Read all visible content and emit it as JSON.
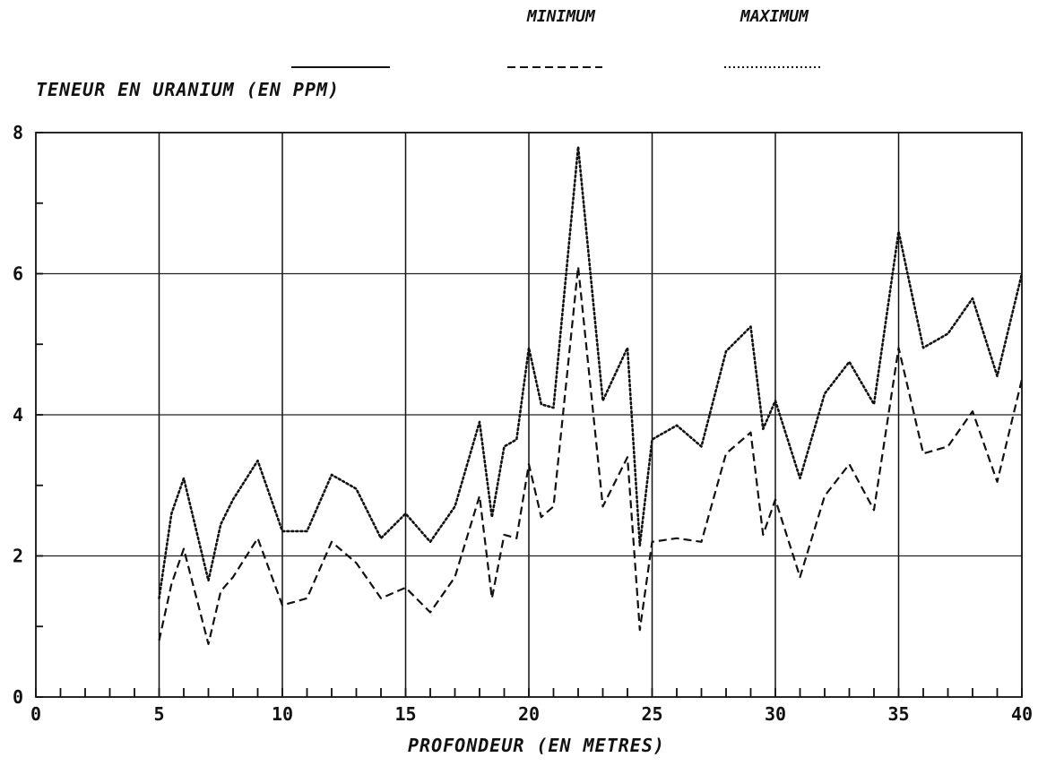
{
  "chart_data": {
    "type": "line",
    "title": "",
    "xlabel": "PROFONDEUR (EN METRES)",
    "ylabel": "TENEUR EN URANIUM (EN PPM)",
    "xlim": [
      0,
      40
    ],
    "ylim": [
      0,
      8
    ],
    "x_ticks": [
      0,
      5,
      10,
      15,
      20,
      25,
      30,
      35,
      40
    ],
    "y_ticks": [
      0,
      2,
      4,
      6,
      8
    ],
    "grid": true,
    "legend": {
      "placement": "top",
      "entries": [
        {
          "name": "",
          "style": "solid"
        },
        {
          "name": "MINIMUM",
          "style": "dashed"
        },
        {
          "name": "MAXIMUM",
          "style": "dotted"
        }
      ]
    },
    "series": [
      {
        "name": "MINIMUM",
        "style": "dashed",
        "x": [
          5,
          5.5,
          6,
          7,
          7.5,
          8,
          9,
          10,
          11,
          12,
          13,
          14,
          15,
          16,
          17,
          18,
          18.5,
          19,
          19.5,
          20,
          20.5,
          21,
          22,
          23,
          24,
          24.5,
          25,
          26,
          27,
          28,
          29,
          29.5,
          30,
          31,
          32,
          33,
          34,
          35,
          36,
          37,
          38,
          39,
          40
        ],
        "y": [
          0.8,
          1.6,
          2.1,
          0.75,
          1.5,
          1.7,
          2.25,
          1.3,
          1.4,
          2.2,
          1.9,
          1.4,
          1.55,
          1.2,
          1.7,
          2.85,
          1.4,
          2.3,
          2.25,
          3.3,
          2.55,
          2.7,
          6.1,
          2.7,
          3.4,
          0.95,
          2.2,
          2.25,
          2.2,
          3.45,
          3.75,
          2.3,
          2.8,
          1.7,
          2.85,
          3.3,
          2.65,
          4.95,
          3.45,
          3.55,
          4.05,
          3.05,
          4.5
        ]
      },
      {
        "name": "MAXIMUM",
        "style": "dotted",
        "x": [
          5,
          5.5,
          6,
          7,
          7.5,
          8,
          9,
          10,
          11,
          12,
          13,
          14,
          15,
          16,
          17,
          18,
          18.5,
          19,
          19.5,
          20,
          20.5,
          21,
          22,
          23,
          24,
          24.5,
          25,
          26,
          27,
          28,
          29,
          29.5,
          30,
          31,
          32,
          33,
          34,
          35,
          36,
          37,
          38,
          39,
          40
        ],
        "y": [
          1.4,
          2.6,
          3.1,
          1.65,
          2.45,
          2.8,
          3.35,
          2.35,
          2.35,
          3.15,
          2.95,
          2.25,
          2.6,
          2.2,
          2.7,
          3.9,
          2.55,
          3.55,
          3.65,
          4.95,
          4.15,
          4.1,
          7.8,
          4.2,
          4.95,
          2.15,
          3.65,
          3.85,
          3.55,
          4.9,
          5.25,
          3.8,
          4.2,
          3.1,
          4.3,
          4.75,
          4.15,
          6.6,
          4.95,
          5.15,
          5.65,
          4.55,
          6.0
        ]
      }
    ]
  }
}
